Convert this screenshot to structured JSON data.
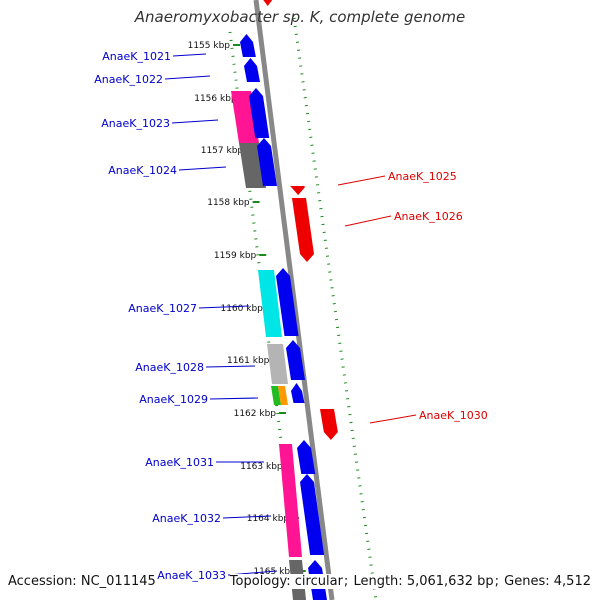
{
  "title": "Anaeromyxobacter sp. K, complete genome",
  "footer": {
    "accession_label": "Accession:",
    "accession": "NC_011145",
    "topology_label": "Topology:",
    "topology": "circular",
    "length_label": "Length:",
    "length": "5,061,632 bp",
    "genes_label": "Genes:",
    "genes": "4,512"
  },
  "ticks": [
    "1155 kbp",
    "1156 kbp",
    "1157 kbp",
    "1158 kbp",
    "1159 kbp",
    "1160 kbp",
    "1161 kbp",
    "1162 kbp",
    "1163 kbp",
    "1164 kbp",
    "1165 kbp"
  ],
  "genes_left": [
    "AnaeK_1021",
    "AnaeK_1022",
    "AnaeK_1023",
    "AnaeK_1024",
    "AnaeK_1027",
    "AnaeK_1028",
    "AnaeK_1029",
    "AnaeK_1031",
    "AnaeK_1032",
    "AnaeK_1033"
  ],
  "genes_right": [
    "AnaeK_1025",
    "AnaeK_1026",
    "AnaeK_1030"
  ],
  "colors": {
    "forward_cds": "#0000ee",
    "reverse_cds": "#ee0000",
    "forward_label": "#0000cc",
    "reverse_label": "#dd0000",
    "backbone": "#888888",
    "gc_dots": "#1a8a1a",
    "cog_magenta": "#ff1493",
    "cog_gray": "#666666",
    "cog_cyan": "#00e5e5",
    "cog_lightgray": "#b4b4b4",
    "cog_green": "#22bb22",
    "cog_orange": "#ff9900"
  }
}
